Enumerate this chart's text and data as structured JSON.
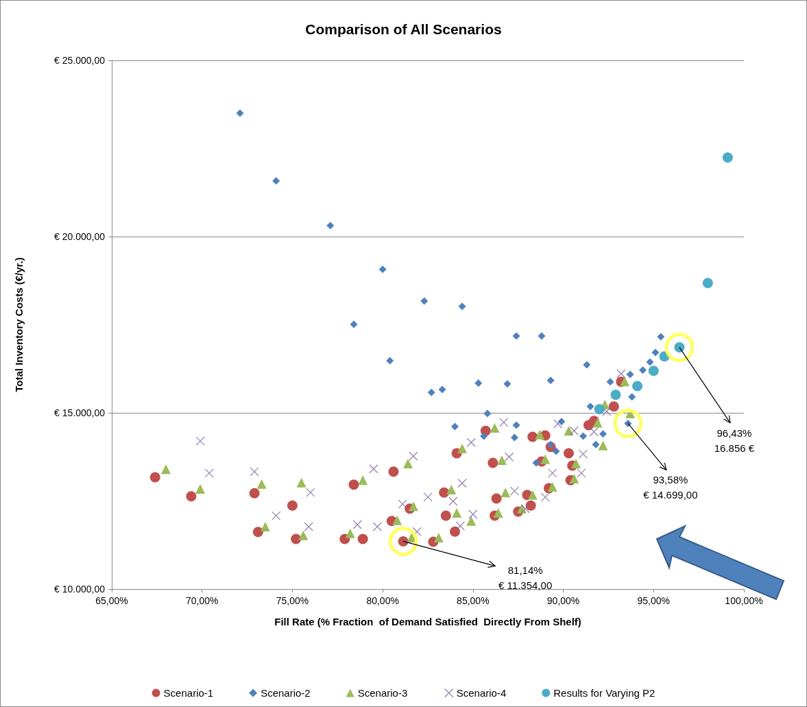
{
  "chart_data": {
    "type": "scatter",
    "title": "Comparison of All Scenarios",
    "xlabel": "Fill Rate (% Fraction  of Demand Satisfied  Directly From Shelf)",
    "ylabel": "Total Inventory Costs (€/yr.)",
    "xlim": [
      65,
      100
    ],
    "ylim": [
      10000,
      25000
    ],
    "xticks": [
      {
        "value": 65,
        "label": "65,00%"
      },
      {
        "value": 70,
        "label": "70,00%"
      },
      {
        "value": 75,
        "label": "75,00%"
      },
      {
        "value": 80,
        "label": "80,00%"
      },
      {
        "value": 85,
        "label": "85,00%"
      },
      {
        "value": 90,
        "label": "90,00%"
      },
      {
        "value": 95,
        "label": "95,00%"
      },
      {
        "value": 100,
        "label": "100,00%"
      }
    ],
    "yticks": [
      {
        "value": 10000,
        "label": "€ 10.000,00"
      },
      {
        "value": 15000,
        "label": "€ 15.000,00"
      },
      {
        "value": 20000,
        "label": "€ 20.000,00"
      },
      {
        "value": 25000,
        "label": "€ 25.000,00"
      }
    ],
    "grid": "y",
    "legend": "bottom",
    "series": [
      {
        "name": "Scenario-1",
        "color": "#c0504d",
        "marker": "circle",
        "x": [
          67.4,
          69.4,
          72.9,
          73.1,
          75.0,
          75.2,
          77.9,
          78.4,
          78.9,
          80.5,
          80.6,
          81.14,
          81.5,
          82.8,
          83.4,
          83.5,
          84.0,
          84.1,
          85.7,
          86.1,
          86.2,
          86.3,
          87.5,
          88.0,
          88.3,
          89.0,
          88.8,
          89.2,
          90.3,
          90.5,
          90.4,
          91.4,
          91.7,
          92.8,
          93.2,
          88.2,
          89.3
        ],
        "values": [
          13170,
          12630,
          12720,
          11620,
          12370,
          11420,
          11420,
          12960,
          11420,
          11930,
          13330,
          11354,
          12280,
          11340,
          12740,
          12080,
          11630,
          13850,
          14490,
          13580,
          12080,
          12570,
          12200,
          12670,
          14320,
          14360,
          13620,
          12860,
          13850,
          13500,
          13090,
          14650,
          14770,
          15180,
          15880,
          12370,
          14030
        ]
      },
      {
        "name": "Scenario-2",
        "color": "#4f81bd",
        "marker": "diamond",
        "x": [
          72.1,
          74.1,
          77.1,
          80.0,
          80.4,
          78.4,
          82.3,
          84.4,
          82.7,
          83.3,
          85.3,
          86.9,
          87.4,
          88.8,
          89.3,
          91.3,
          85.8,
          84.0,
          85.6,
          87.4,
          87.3,
          88.5,
          89.3,
          89.6,
          89.9,
          91.1,
          91.5,
          91.8,
          92.2,
          92.6,
          93.58,
          93.7,
          93.8,
          94.3,
          94.4,
          94.8,
          95.1,
          95.4
        ],
        "values": [
          23500,
          21580,
          20310,
          19070,
          16480,
          17510,
          18170,
          18020,
          15580,
          15660,
          15840,
          15820,
          17180,
          17180,
          15920,
          16360,
          14980,
          14610,
          14340,
          14650,
          14300,
          13580,
          14100,
          13910,
          14750,
          14340,
          15180,
          14100,
          14400,
          15880,
          14699,
          16090,
          15450,
          null,
          16210,
          16440,
          16710,
          17160
        ]
      },
      {
        "name": "Scenario-3",
        "color": "#9bbb59",
        "marker": "triangle",
        "x": [
          68.0,
          69.9,
          73.3,
          73.5,
          75.5,
          75.6,
          78.2,
          78.9,
          80.8,
          81.4,
          81.7,
          81.6,
          83.1,
          83.8,
          84.1,
          84.9,
          84.4,
          86.2,
          86.6,
          86.4,
          86.8,
          87.7,
          88.3,
          88.7,
          89.0,
          89.4,
          90.3,
          90.7,
          90.6,
          91.9,
          92.3,
          93.4,
          93.7,
          92.2
        ],
        "values": [
          13400,
          12840,
          12980,
          11770,
          13020,
          11520,
          11580,
          13090,
          11950,
          13560,
          12350,
          11460,
          11460,
          12820,
          12160,
          11930,
          13990,
          14570,
          13660,
          12160,
          12740,
          12280,
          12670,
          14380,
          13680,
          12900,
          14490,
          13560,
          13130,
          14720,
          15240,
          15890,
          14980,
          14070
        ]
      },
      {
        "name": "Scenario-4",
        "color": "#8064a2",
        "marker": "cross",
        "x": [
          69.9,
          70.4,
          72.9,
          74.1,
          76.0,
          75.9,
          78.6,
          79.5,
          79.7,
          81.1,
          81.7,
          81.9,
          82.5,
          83.9,
          84.4,
          84.9,
          85.0,
          84.3,
          86.7,
          87.0,
          87.3,
          87.9,
          89.0,
          89.4,
          89.7,
          90.6,
          91.0,
          91.1,
          91.7,
          92.4,
          92.9,
          93.2
        ],
        "values": [
          14200,
          13290,
          13330,
          12080,
          12740,
          11770,
          11830,
          13410,
          11770,
          12410,
          13770,
          11630,
          12610,
          12490,
          13000,
          14160,
          12120,
          11790,
          14730,
          13750,
          12780,
          12280,
          12610,
          13290,
          14690,
          14490,
          13290,
          13830,
          14460,
          15040,
          null,
          16110
        ]
      },
      {
        "name": "Results for Varying P2",
        "color": "#4bacc6",
        "marker": "circle",
        "x": [
          92.0,
          92.9,
          94.1,
          95.0,
          95.6,
          96.43,
          98.0,
          99.1
        ],
        "values": [
          15100,
          15510,
          15760,
          16190,
          16600,
          16856,
          18680,
          22240
        ]
      }
    ],
    "annotations": [
      {
        "text": "81,14%\n€ 11.354,00",
        "x": 81.14,
        "y": 11354
      },
      {
        "text": "93,58%\n€ 14.699,00",
        "x": 93.58,
        "y": 14699
      },
      {
        "text": "96,43%\n16.856 €",
        "x": 96.43,
        "y": 16856
      }
    ]
  }
}
